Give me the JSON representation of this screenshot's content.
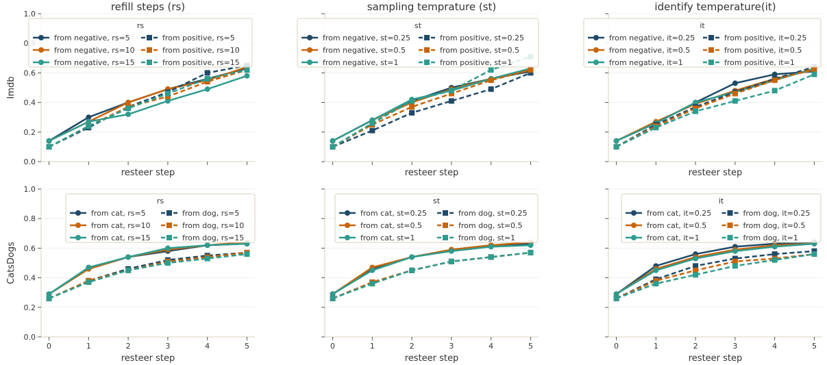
{
  "figure": {
    "column_titles": [
      "refill steps (rs)",
      "sampling temprature (st)",
      "identify temperature(it)"
    ],
    "row_ylabels": [
      "Imdb",
      "CatsDogs"
    ]
  },
  "colors": {
    "dark_navy": "#1f4a68",
    "orange": "#c8650a",
    "teal": "#2f9c8f",
    "axis": "#d9d2bd",
    "grid": "#efefef"
  },
  "chart_data": [
    {
      "type": "line",
      "title": "refill steps (rs)",
      "xlabel": "resteer step",
      "ylabel": "Imdb",
      "xlim": [
        -0.2,
        5.2
      ],
      "ylim": [
        0,
        1.0
      ],
      "x": [
        0,
        1,
        2,
        3,
        4,
        5
      ],
      "xticks": [
        "0",
        "1",
        "2",
        "3",
        "4",
        "5"
      ],
      "xticklabels_visible": false,
      "yticks": [
        "0.0",
        "0.2",
        "0.4",
        "0.6",
        "0.8",
        "1.0"
      ],
      "yticklabels_visible": true,
      "grid": true,
      "legend": {
        "title": "rs",
        "position": "top-left"
      },
      "series": [
        {
          "name": "from negative, rs=5",
          "color": "#1f4a68",
          "style": "solid",
          "marker": "circle",
          "values": [
            0.14,
            0.3,
            0.4,
            0.49,
            0.56,
            0.63
          ]
        },
        {
          "name": "from negative, rs=10",
          "color": "#c8650a",
          "style": "solid",
          "marker": "circle",
          "values": [
            0.14,
            0.27,
            0.4,
            0.49,
            0.55,
            0.64
          ]
        },
        {
          "name": "from negative, rs=15",
          "color": "#2f9c8f",
          "style": "solid",
          "marker": "circle",
          "values": [
            0.14,
            0.27,
            0.32,
            0.41,
            0.49,
            0.58
          ]
        },
        {
          "name": "from positive, rs=5",
          "color": "#1f4a68",
          "style": "dashed",
          "marker": "square",
          "values": [
            0.1,
            0.23,
            0.37,
            0.47,
            0.6,
            0.65
          ]
        },
        {
          "name": "from positive, rs=10",
          "color": "#c8650a",
          "style": "dashed",
          "marker": "square",
          "values": [
            0.1,
            0.24,
            0.37,
            0.44,
            0.54,
            0.62
          ]
        },
        {
          "name": "from positive, rs=15",
          "color": "#2f9c8f",
          "style": "dashed",
          "marker": "square",
          "values": [
            0.1,
            0.24,
            0.36,
            0.46,
            0.56,
            0.62
          ]
        }
      ]
    },
    {
      "type": "line",
      "title": "sampling temprature (st)",
      "xlabel": "resteer step",
      "ylabel": "",
      "xlim": [
        -0.2,
        5.2
      ],
      "ylim": [
        0,
        1.0
      ],
      "x": [
        0,
        1,
        2,
        3,
        4,
        5
      ],
      "xticks": [
        "0",
        "1",
        "2",
        "3",
        "4",
        "5"
      ],
      "xticklabels_visible": false,
      "yticks": [
        "0.0",
        "0.2",
        "0.4",
        "0.6",
        "0.8",
        "1.0"
      ],
      "yticklabels_visible": false,
      "grid": true,
      "legend": {
        "title": "st",
        "position": "top-left"
      },
      "series": [
        {
          "name": "from negative, st=0.25",
          "color": "#1f4a68",
          "style": "solid",
          "marker": "circle",
          "values": [
            0.14,
            0.28,
            0.41,
            0.5,
            0.56,
            0.61
          ]
        },
        {
          "name": "from negative, st=0.5",
          "color": "#c8650a",
          "style": "solid",
          "marker": "circle",
          "values": [
            0.14,
            0.28,
            0.4,
            0.49,
            0.56,
            0.62
          ]
        },
        {
          "name": "from negative, st=1",
          "color": "#2f9c8f",
          "style": "solid",
          "marker": "circle",
          "values": [
            0.14,
            0.28,
            0.42,
            0.48,
            0.56,
            0.63
          ]
        },
        {
          "name": "from positive, st=0.25",
          "color": "#1f4a68",
          "style": "dashed",
          "marker": "square",
          "values": [
            0.1,
            0.21,
            0.33,
            0.41,
            0.49,
            0.6
          ]
        },
        {
          "name": "from positive, st=0.5",
          "color": "#c8650a",
          "style": "dashed",
          "marker": "square",
          "values": [
            0.1,
            0.25,
            0.37,
            0.46,
            0.55,
            0.62
          ]
        },
        {
          "name": "from positive, st=1",
          "color": "#2f9c8f",
          "style": "dashed",
          "marker": "square",
          "values": [
            0.1,
            0.26,
            0.41,
            0.48,
            0.62,
            0.71
          ]
        }
      ]
    },
    {
      "type": "line",
      "title": "identify temperature(it)",
      "xlabel": "resteer step",
      "ylabel": "",
      "xlim": [
        -0.2,
        5.2
      ],
      "ylim": [
        0,
        1.0
      ],
      "x": [
        0,
        1,
        2,
        3,
        4,
        5
      ],
      "xticks": [
        "0",
        "1",
        "2",
        "3",
        "4",
        "5"
      ],
      "xticklabels_visible": false,
      "yticks": [
        "0.0",
        "0.2",
        "0.4",
        "0.6",
        "0.8",
        "1.0"
      ],
      "yticklabels_visible": false,
      "grid": true,
      "legend": {
        "title": "it",
        "position": "top-left"
      },
      "series": [
        {
          "name": "from negative, it=0.25",
          "color": "#1f4a68",
          "style": "solid",
          "marker": "circle",
          "values": [
            0.14,
            0.26,
            0.4,
            0.53,
            0.59,
            0.61
          ]
        },
        {
          "name": "from negative, it=0.5",
          "color": "#c8650a",
          "style": "solid",
          "marker": "circle",
          "values": [
            0.14,
            0.27,
            0.39,
            0.48,
            0.56,
            0.62
          ]
        },
        {
          "name": "from negative, it=1",
          "color": "#2f9c8f",
          "style": "solid",
          "marker": "circle",
          "values": [
            0.14,
            0.26,
            0.4,
            0.47,
            0.55,
            0.63
          ]
        },
        {
          "name": "from positive, it=0.25",
          "color": "#1f4a68",
          "style": "dashed",
          "marker": "square",
          "values": [
            0.1,
            0.25,
            0.37,
            0.47,
            0.56,
            0.64
          ]
        },
        {
          "name": "from positive, it=0.5",
          "color": "#c8650a",
          "style": "dashed",
          "marker": "square",
          "values": [
            0.1,
            0.24,
            0.36,
            0.46,
            0.55,
            0.63
          ]
        },
        {
          "name": "from positive, it=1",
          "color": "#2f9c8f",
          "style": "dashed",
          "marker": "square",
          "values": [
            0.1,
            0.23,
            0.34,
            0.41,
            0.48,
            0.59
          ]
        }
      ]
    },
    {
      "type": "line",
      "title": "",
      "xlabel": "resteer step",
      "ylabel": "CatsDogs",
      "xlim": [
        -0.2,
        5.2
      ],
      "ylim": [
        0,
        1.0
      ],
      "x": [
        0,
        1,
        2,
        3,
        4,
        5
      ],
      "xticks": [
        "0",
        "1",
        "2",
        "3",
        "4",
        "5"
      ],
      "xticklabels_visible": true,
      "yticks": [
        "0.0",
        "0.2",
        "0.4",
        "0.6",
        "0.8",
        "1.0"
      ],
      "yticklabels_visible": true,
      "grid": true,
      "legend": {
        "title": "rs",
        "position": "top-center"
      },
      "series": [
        {
          "name": "from cat, rs=5",
          "color": "#1f4a68",
          "style": "solid",
          "marker": "circle",
          "values": [
            0.29,
            0.46,
            0.54,
            0.58,
            0.62,
            0.63
          ]
        },
        {
          "name": "from cat, rs=10",
          "color": "#c8650a",
          "style": "solid",
          "marker": "circle",
          "values": [
            0.29,
            0.46,
            0.54,
            0.59,
            0.62,
            0.64
          ]
        },
        {
          "name": "from cat, rs=15",
          "color": "#2f9c8f",
          "style": "solid",
          "marker": "circle",
          "values": [
            0.29,
            0.47,
            0.54,
            0.6,
            0.62,
            0.63
          ]
        },
        {
          "name": "from dog, rs=5",
          "color": "#1f4a68",
          "style": "dashed",
          "marker": "square",
          "values": [
            0.26,
            0.38,
            0.46,
            0.52,
            0.55,
            0.57
          ]
        },
        {
          "name": "from dog, rs=10",
          "color": "#c8650a",
          "style": "dashed",
          "marker": "square",
          "values": [
            0.26,
            0.38,
            0.45,
            0.51,
            0.54,
            0.57
          ]
        },
        {
          "name": "from dog, rs=15",
          "color": "#2f9c8f",
          "style": "dashed",
          "marker": "square",
          "values": [
            0.26,
            0.37,
            0.45,
            0.5,
            0.53,
            0.56
          ]
        }
      ]
    },
    {
      "type": "line",
      "title": "",
      "xlabel": "resteer step",
      "ylabel": "",
      "xlim": [
        -0.2,
        5.2
      ],
      "ylim": [
        0,
        1.0
      ],
      "x": [
        0,
        1,
        2,
        3,
        4,
        5
      ],
      "xticks": [
        "0",
        "1",
        "2",
        "3",
        "4",
        "5"
      ],
      "xticklabels_visible": true,
      "yticks": [
        "0.0",
        "0.2",
        "0.4",
        "0.6",
        "0.8",
        "1.0"
      ],
      "yticklabels_visible": false,
      "grid": true,
      "legend": {
        "title": "st",
        "position": "top-center"
      },
      "series": [
        {
          "name": "from cat, st=0.25",
          "color": "#1f4a68",
          "style": "solid",
          "marker": "circle",
          "values": [
            0.29,
            0.46,
            0.54,
            0.59,
            0.62,
            0.63
          ]
        },
        {
          "name": "from cat, st=0.5",
          "color": "#c8650a",
          "style": "solid",
          "marker": "circle",
          "values": [
            0.29,
            0.47,
            0.54,
            0.59,
            0.62,
            0.64
          ]
        },
        {
          "name": "from cat, st=1",
          "color": "#2f9c8f",
          "style": "solid",
          "marker": "circle",
          "values": [
            0.29,
            0.45,
            0.54,
            0.58,
            0.61,
            0.62
          ]
        },
        {
          "name": "from dog, st=0.25",
          "color": "#1f4a68",
          "style": "dashed",
          "marker": "square",
          "values": [
            0.26,
            0.37,
            0.45,
            0.51,
            0.54,
            0.57
          ]
        },
        {
          "name": "from dog, st=0.5",
          "color": "#c8650a",
          "style": "dashed",
          "marker": "square",
          "values": [
            0.26,
            0.37,
            0.45,
            0.51,
            0.54,
            0.57
          ]
        },
        {
          "name": "from dog, st=1",
          "color": "#2f9c8f",
          "style": "dashed",
          "marker": "square",
          "values": [
            0.26,
            0.36,
            0.45,
            0.51,
            0.54,
            0.57
          ]
        }
      ]
    },
    {
      "type": "line",
      "title": "",
      "xlabel": "resteer step",
      "ylabel": "",
      "xlim": [
        -0.2,
        5.2
      ],
      "ylim": [
        0,
        1.0
      ],
      "x": [
        0,
        1,
        2,
        3,
        4,
        5
      ],
      "xticks": [
        "0",
        "1",
        "2",
        "3",
        "4",
        "5"
      ],
      "xticklabels_visible": true,
      "yticks": [
        "0.0",
        "0.2",
        "0.4",
        "0.6",
        "0.8",
        "1.0"
      ],
      "yticklabels_visible": false,
      "grid": true,
      "legend": {
        "title": "it",
        "position": "top-center"
      },
      "series": [
        {
          "name": "from cat, it=0.25",
          "color": "#1f4a68",
          "style": "solid",
          "marker": "circle",
          "values": [
            0.29,
            0.48,
            0.56,
            0.61,
            0.63,
            0.64
          ]
        },
        {
          "name": "from cat, it=0.5",
          "color": "#c8650a",
          "style": "solid",
          "marker": "circle",
          "values": [
            0.29,
            0.46,
            0.54,
            0.59,
            0.62,
            0.63
          ]
        },
        {
          "name": "from cat, it=1",
          "color": "#2f9c8f",
          "style": "solid",
          "marker": "circle",
          "values": [
            0.29,
            0.45,
            0.53,
            0.58,
            0.61,
            0.63
          ]
        },
        {
          "name": "from dog, it=0.25",
          "color": "#1f4a68",
          "style": "dashed",
          "marker": "square",
          "values": [
            0.26,
            0.39,
            0.48,
            0.53,
            0.56,
            0.58
          ]
        },
        {
          "name": "from dog, it=0.5",
          "color": "#c8650a",
          "style": "dashed",
          "marker": "square",
          "values": [
            0.26,
            0.38,
            0.45,
            0.51,
            0.53,
            0.56
          ]
        },
        {
          "name": "from dog, it=1",
          "color": "#2f9c8f",
          "style": "dashed",
          "marker": "square",
          "values": [
            0.26,
            0.36,
            0.42,
            0.48,
            0.52,
            0.56
          ]
        }
      ]
    }
  ]
}
